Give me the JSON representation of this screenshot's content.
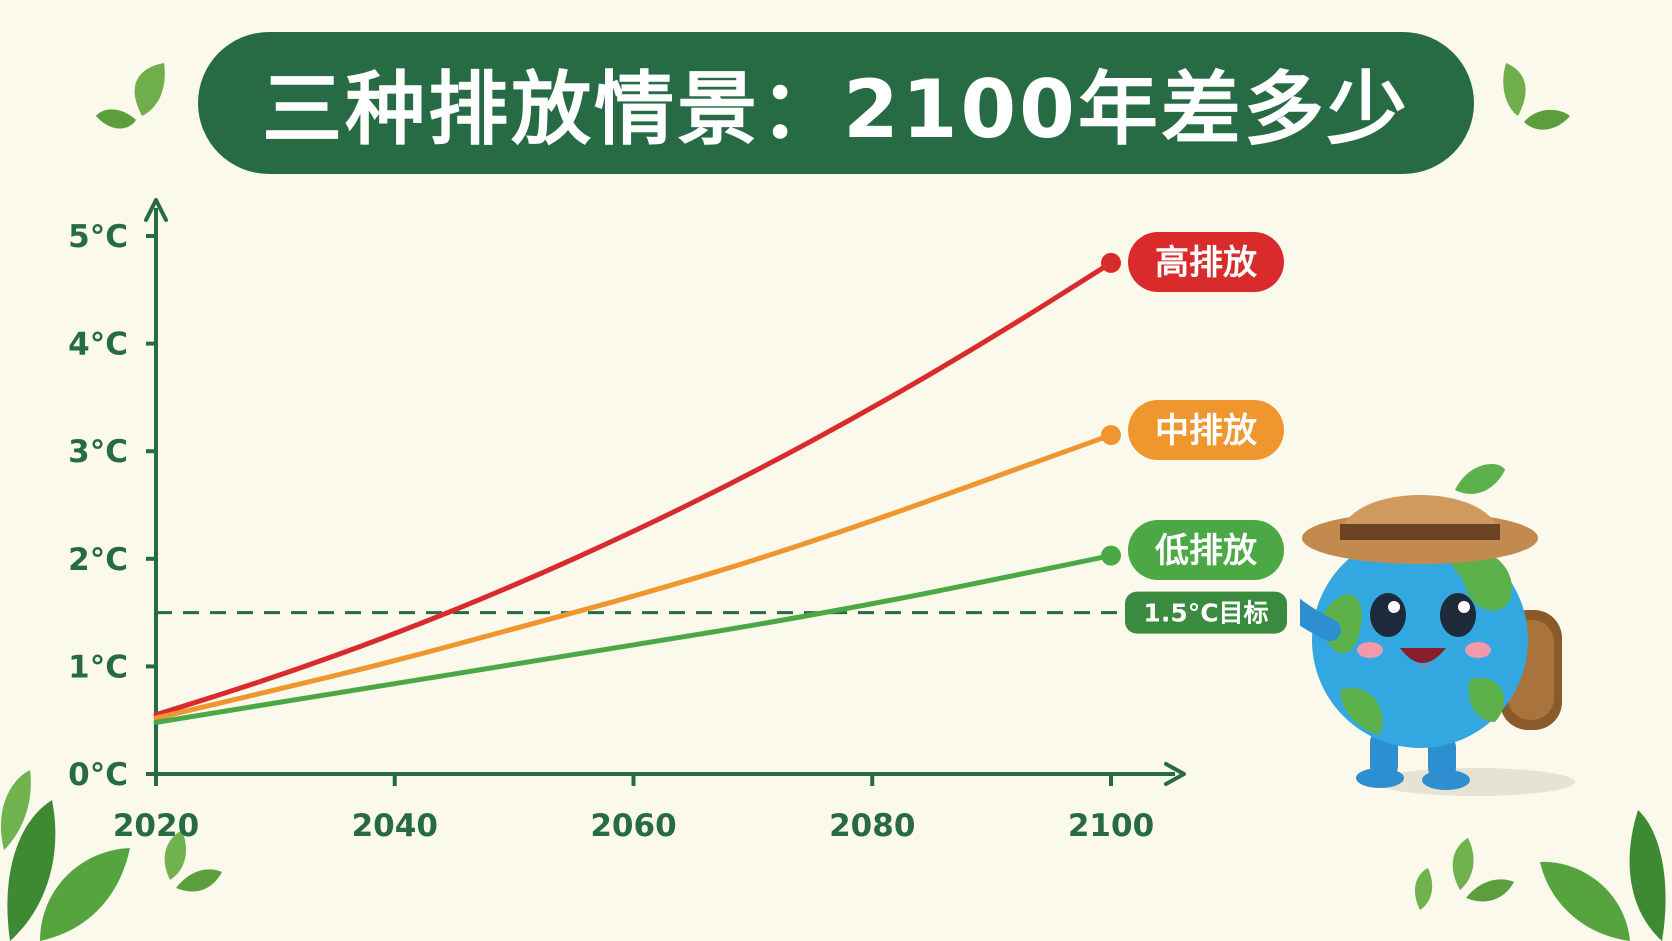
{
  "title": "三种排放情景：2100年差多少",
  "colors": {
    "background": "#FBF8EC",
    "title_bg": "#276B45",
    "axis": "#276B45",
    "high": "#D92B2B",
    "mid": "#F0962F",
    "low": "#4BA845",
    "target_label_bg": "#3A8A3F"
  },
  "icons": [
    "leaf-icon",
    "earth-mascot-icon",
    "flag-icon",
    "arrow-up-icon",
    "arrow-right-icon"
  ],
  "chart_data": {
    "type": "line",
    "x": [
      2020,
      2100
    ],
    "xlim": [
      2020,
      2100
    ],
    "ylim": [
      0,
      5
    ],
    "x_ticks": [
      "2020",
      "2040",
      "2060",
      "2080",
      "2100"
    ],
    "y_ticks": [
      "0°C",
      "1°C",
      "2°C",
      "3°C",
      "4°C",
      "5°C"
    ],
    "series": [
      {
        "name": "高排放",
        "color": "#D92B2B",
        "points": [
          [
            2020,
            0.55
          ],
          [
            2030,
            0.9
          ],
          [
            2040,
            1.3
          ],
          [
            2050,
            1.75
          ],
          [
            2060,
            2.25
          ],
          [
            2070,
            2.8
          ],
          [
            2080,
            3.4
          ],
          [
            2090,
            4.05
          ],
          [
            2100,
            4.75
          ]
        ]
      },
      {
        "name": "中排放",
        "color": "#F0962F",
        "points": [
          [
            2020,
            0.52
          ],
          [
            2030,
            0.78
          ],
          [
            2040,
            1.05
          ],
          [
            2050,
            1.35
          ],
          [
            2060,
            1.65
          ],
          [
            2070,
            1.98
          ],
          [
            2080,
            2.35
          ],
          [
            2090,
            2.75
          ],
          [
            2100,
            3.15
          ]
        ]
      },
      {
        "name": "低排放",
        "color": "#4BA845",
        "points": [
          [
            2020,
            0.48
          ],
          [
            2030,
            0.66
          ],
          [
            2040,
            0.84
          ],
          [
            2050,
            1.02
          ],
          [
            2060,
            1.2
          ],
          [
            2070,
            1.38
          ],
          [
            2080,
            1.58
          ],
          [
            2090,
            1.8
          ],
          [
            2100,
            2.03
          ]
        ]
      }
    ],
    "reference_line": {
      "value": 1.5,
      "label": "1.5°C目标",
      "style": "dashed"
    },
    "grid": false,
    "legend": "end-of-line labels"
  }
}
